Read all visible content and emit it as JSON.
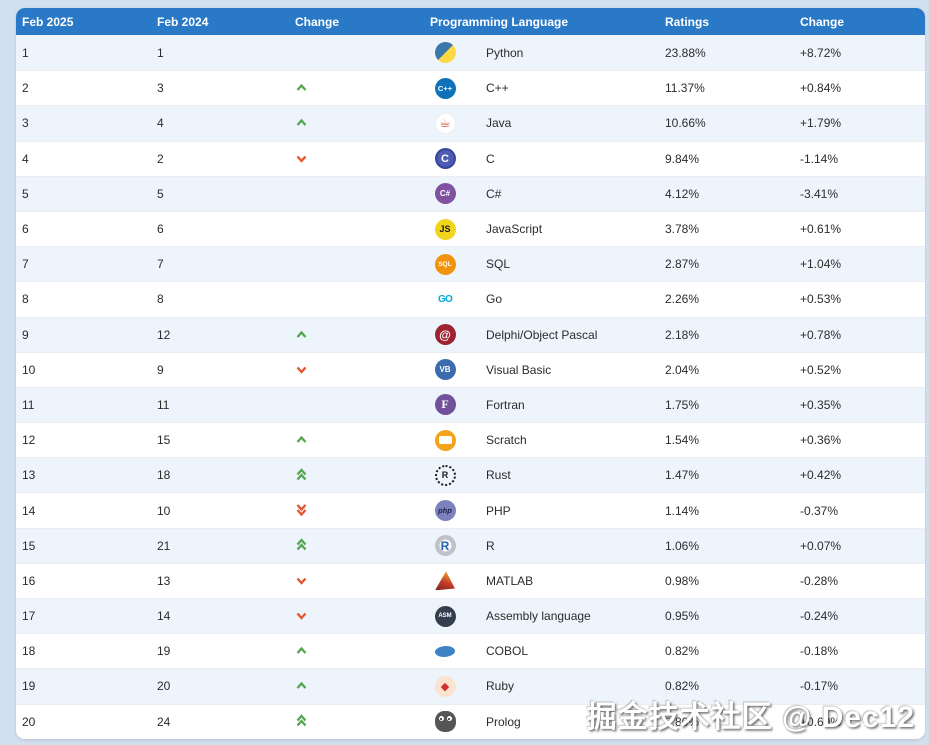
{
  "table": {
    "columns": [
      "Feb 2025",
      "Feb 2024",
      "Change",
      "Programming Language",
      "Ratings",
      "Change"
    ],
    "rows": [
      {
        "rank_now": "1",
        "rank_prev": "1",
        "move": "",
        "icon": "python-icon",
        "language": "Python",
        "rating": "23.88%",
        "change": "+8.72%"
      },
      {
        "rank_now": "2",
        "rank_prev": "3",
        "move": "up",
        "icon": "cpp-icon",
        "language": "C++",
        "rating": "11.37%",
        "change": "+0.84%"
      },
      {
        "rank_now": "3",
        "rank_prev": "4",
        "move": "up",
        "icon": "java-icon",
        "language": "Java",
        "rating": "10.66%",
        "change": "+1.79%"
      },
      {
        "rank_now": "4",
        "rank_prev": "2",
        "move": "down",
        "icon": "c-icon",
        "language": "C",
        "rating": "9.84%",
        "change": "-1.14%"
      },
      {
        "rank_now": "5",
        "rank_prev": "5",
        "move": "",
        "icon": "csharp-icon",
        "language": "C#",
        "rating": "4.12%",
        "change": "-3.41%"
      },
      {
        "rank_now": "6",
        "rank_prev": "6",
        "move": "",
        "icon": "js-icon",
        "language": "JavaScript",
        "rating": "3.78%",
        "change": "+0.61%"
      },
      {
        "rank_now": "7",
        "rank_prev": "7",
        "move": "",
        "icon": "sql-icon",
        "language": "SQL",
        "rating": "2.87%",
        "change": "+1.04%"
      },
      {
        "rank_now": "8",
        "rank_prev": "8",
        "move": "",
        "icon": "go-icon",
        "language": "Go",
        "rating": "2.26%",
        "change": "+0.53%"
      },
      {
        "rank_now": "9",
        "rank_prev": "12",
        "move": "up",
        "icon": "delphi-icon",
        "language": "Delphi/Object Pascal",
        "rating": "2.18%",
        "change": "+0.78%"
      },
      {
        "rank_now": "10",
        "rank_prev": "9",
        "move": "down",
        "icon": "vb-icon",
        "language": "Visual Basic",
        "rating": "2.04%",
        "change": "+0.52%"
      },
      {
        "rank_now": "11",
        "rank_prev": "11",
        "move": "",
        "icon": "fortran-icon",
        "language": "Fortran",
        "rating": "1.75%",
        "change": "+0.35%"
      },
      {
        "rank_now": "12",
        "rank_prev": "15",
        "move": "up",
        "icon": "scratch-icon",
        "language": "Scratch",
        "rating": "1.54%",
        "change": "+0.36%"
      },
      {
        "rank_now": "13",
        "rank_prev": "18",
        "move": "up2",
        "icon": "rust-icon",
        "language": "Rust",
        "rating": "1.47%",
        "change": "+0.42%"
      },
      {
        "rank_now": "14",
        "rank_prev": "10",
        "move": "down2",
        "icon": "php-icon",
        "language": "PHP",
        "rating": "1.14%",
        "change": "-0.37%"
      },
      {
        "rank_now": "15",
        "rank_prev": "21",
        "move": "up2",
        "icon": "r-icon",
        "language": "R",
        "rating": "1.06%",
        "change": "+0.07%"
      },
      {
        "rank_now": "16",
        "rank_prev": "13",
        "move": "down",
        "icon": "matlab-icon",
        "language": "MATLAB",
        "rating": "0.98%",
        "change": "-0.28%"
      },
      {
        "rank_now": "17",
        "rank_prev": "14",
        "move": "down",
        "icon": "asm-icon",
        "language": "Assembly language",
        "rating": "0.95%",
        "change": "-0.24%"
      },
      {
        "rank_now": "18",
        "rank_prev": "19",
        "move": "up",
        "icon": "cobol-icon",
        "language": "COBOL",
        "rating": "0.82%",
        "change": "-0.18%"
      },
      {
        "rank_now": "19",
        "rank_prev": "20",
        "move": "up",
        "icon": "ruby-icon",
        "language": "Ruby",
        "rating": "0.82%",
        "change": "-0.17%"
      },
      {
        "rank_now": "20",
        "rank_prev": "24",
        "move": "up2",
        "icon": "prolog-icon",
        "language": "Prolog",
        "rating": "0.80%",
        "change": "+0.69%"
      }
    ]
  },
  "icon_glyphs": {
    "python-icon": "",
    "cpp-icon": "C++",
    "java-icon": "☕",
    "c-icon": "C",
    "csharp-icon": "C#",
    "js-icon": "JS",
    "sql-icon": "SQL",
    "go-icon": "GO",
    "delphi-icon": "@",
    "vb-icon": "VB",
    "fortran-icon": "F",
    "scratch-icon": "",
    "rust-icon": "R",
    "php-icon": "php",
    "r-icon": "R",
    "matlab-icon": "",
    "asm-icon": "ASM",
    "cobol-icon": "",
    "ruby-icon": "◆",
    "prolog-icon": ""
  },
  "colors": {
    "header_bg": "#2a79c7",
    "row_alt_bg": "#eef4fb",
    "page_bg": "#d2dfef",
    "up_arrow": "#56a554",
    "down_arrow": "#e2572e"
  },
  "watermark": "掘金技术社区 @ Dec12"
}
